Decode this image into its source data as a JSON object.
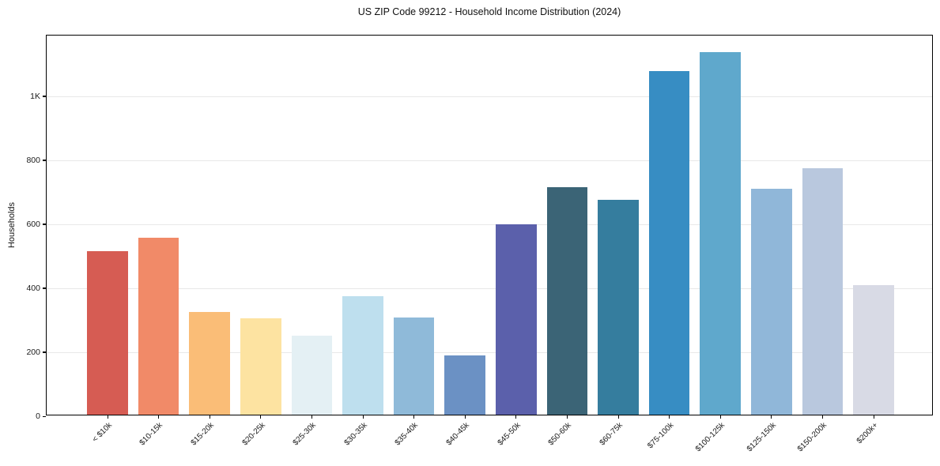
{
  "chart_data": {
    "type": "bar",
    "title": "US ZIP Code 99212 - Household Income Distribution (2024)",
    "xlabel": "",
    "ylabel": "Households",
    "categories": [
      "< $10k",
      "$10-15k",
      "$15-20k",
      "$20-25k",
      "$25-30k",
      "$30-35k",
      "$35-40k",
      "$40-45k",
      "$45-50k",
      "$50-60k",
      "$60-75k",
      "$75-100k",
      "$100-125k",
      "$125-150k",
      "$150-200k",
      "$200k+"
    ],
    "values": [
      511,
      554,
      321,
      301,
      246,
      370,
      303,
      185,
      595,
      710,
      672,
      1073,
      1134,
      706,
      771,
      404
    ],
    "bar_colors": [
      "#d65c53",
      "#f18a68",
      "#fabd77",
      "#fde3a1",
      "#e4f0f4",
      "#bedfee",
      "#8fbad9",
      "#6b91c4",
      "#5b60ab",
      "#3b6476",
      "#357d9e",
      "#378dc3",
      "#5fa8cc",
      "#90b7d9",
      "#b9c8de",
      "#d8dae5"
    ],
    "ylim": [
      0,
      1190
    ],
    "yticks": [
      {
        "value": 0,
        "label": "0"
      },
      {
        "value": 200,
        "label": "200"
      },
      {
        "value": 400,
        "label": "400"
      },
      {
        "value": 600,
        "label": "600"
      },
      {
        "value": 800,
        "label": "800"
      },
      {
        "value": 1000,
        "label": "1K"
      }
    ],
    "grid": "horizontal",
    "gridline_color": "#e8e8e8",
    "spine_color": "#000000",
    "background_color": "#ffffff",
    "legend": "none"
  }
}
